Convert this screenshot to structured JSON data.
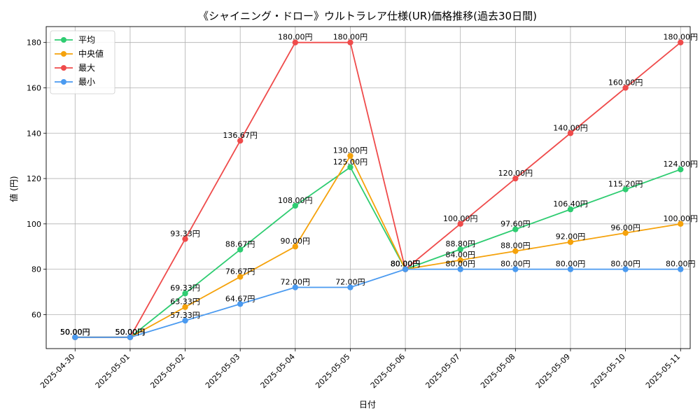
{
  "chart_data": {
    "type": "line",
    "title": "《シャイニング・ドロー》ウルトラレア仕様(UR)価格推移(過去30日間)",
    "xlabel": "日付",
    "ylabel": "値 (円)",
    "categories": [
      "2025-04-30",
      "2025-05-01",
      "2025-05-02",
      "2025-05-03",
      "2025-05-04",
      "2025-05-05",
      "2025-05-06",
      "2025-05-07",
      "2025-05-08",
      "2025-05-09",
      "2025-05-10",
      "2025-05-11"
    ],
    "ylim": [
      45,
      187
    ],
    "yticks": [
      "60",
      "80",
      "100",
      "120",
      "140",
      "160",
      "180"
    ],
    "grid": true,
    "legend_position": "top-left",
    "series": [
      {
        "name": "平均",
        "color": "#2ecc71",
        "values": [
          50,
          50,
          69.33,
          88.67,
          108,
          125,
          80,
          88.8,
          97.6,
          106.4,
          115.2,
          124
        ],
        "labels": [
          "50.00円",
          "50.00円",
          "69.33円",
          "88.67円",
          "108.00円",
          "125.00円",
          "80.00円",
          "88.80円",
          "97.60円",
          "106.40円",
          "115.20円",
          "124.00円"
        ]
      },
      {
        "name": "中央値",
        "color": "#f5a20b",
        "values": [
          50,
          50,
          63.33,
          76.67,
          90,
          130,
          80,
          84,
          88,
          92,
          96,
          100
        ],
        "labels": [
          "50.00円",
          "50.00円",
          "63.33円",
          "76.67円",
          "90.00円",
          "130.00円",
          "80.00円",
          "84.00円",
          "88.00円",
          "92.00円",
          "96.00円",
          "100.00円"
        ]
      },
      {
        "name": "最大",
        "color": "#ef4b4b",
        "values": [
          50,
          50,
          93.33,
          136.67,
          180,
          180,
          80,
          100,
          120,
          140,
          160,
          180
        ],
        "labels": [
          "50.00円",
          "50.00円",
          "93.33円",
          "136.67円",
          "180.00円",
          "180.00円",
          "80.00円",
          "100.00円",
          "120.00円",
          "140.00円",
          "160.00円",
          "180.00円"
        ]
      },
      {
        "name": "最小",
        "color": "#4a9af0",
        "values": [
          50,
          50,
          57.33,
          64.67,
          72,
          72,
          80,
          80,
          80,
          80,
          80,
          80
        ],
        "labels": [
          "50.00円",
          "50.00円",
          "57.33円",
          "64.67円",
          "72.00円",
          "72.00円",
          "80.00円",
          "80.00円",
          "80.00円",
          "80.00円",
          "80.00円",
          "80.00円"
        ]
      }
    ]
  }
}
